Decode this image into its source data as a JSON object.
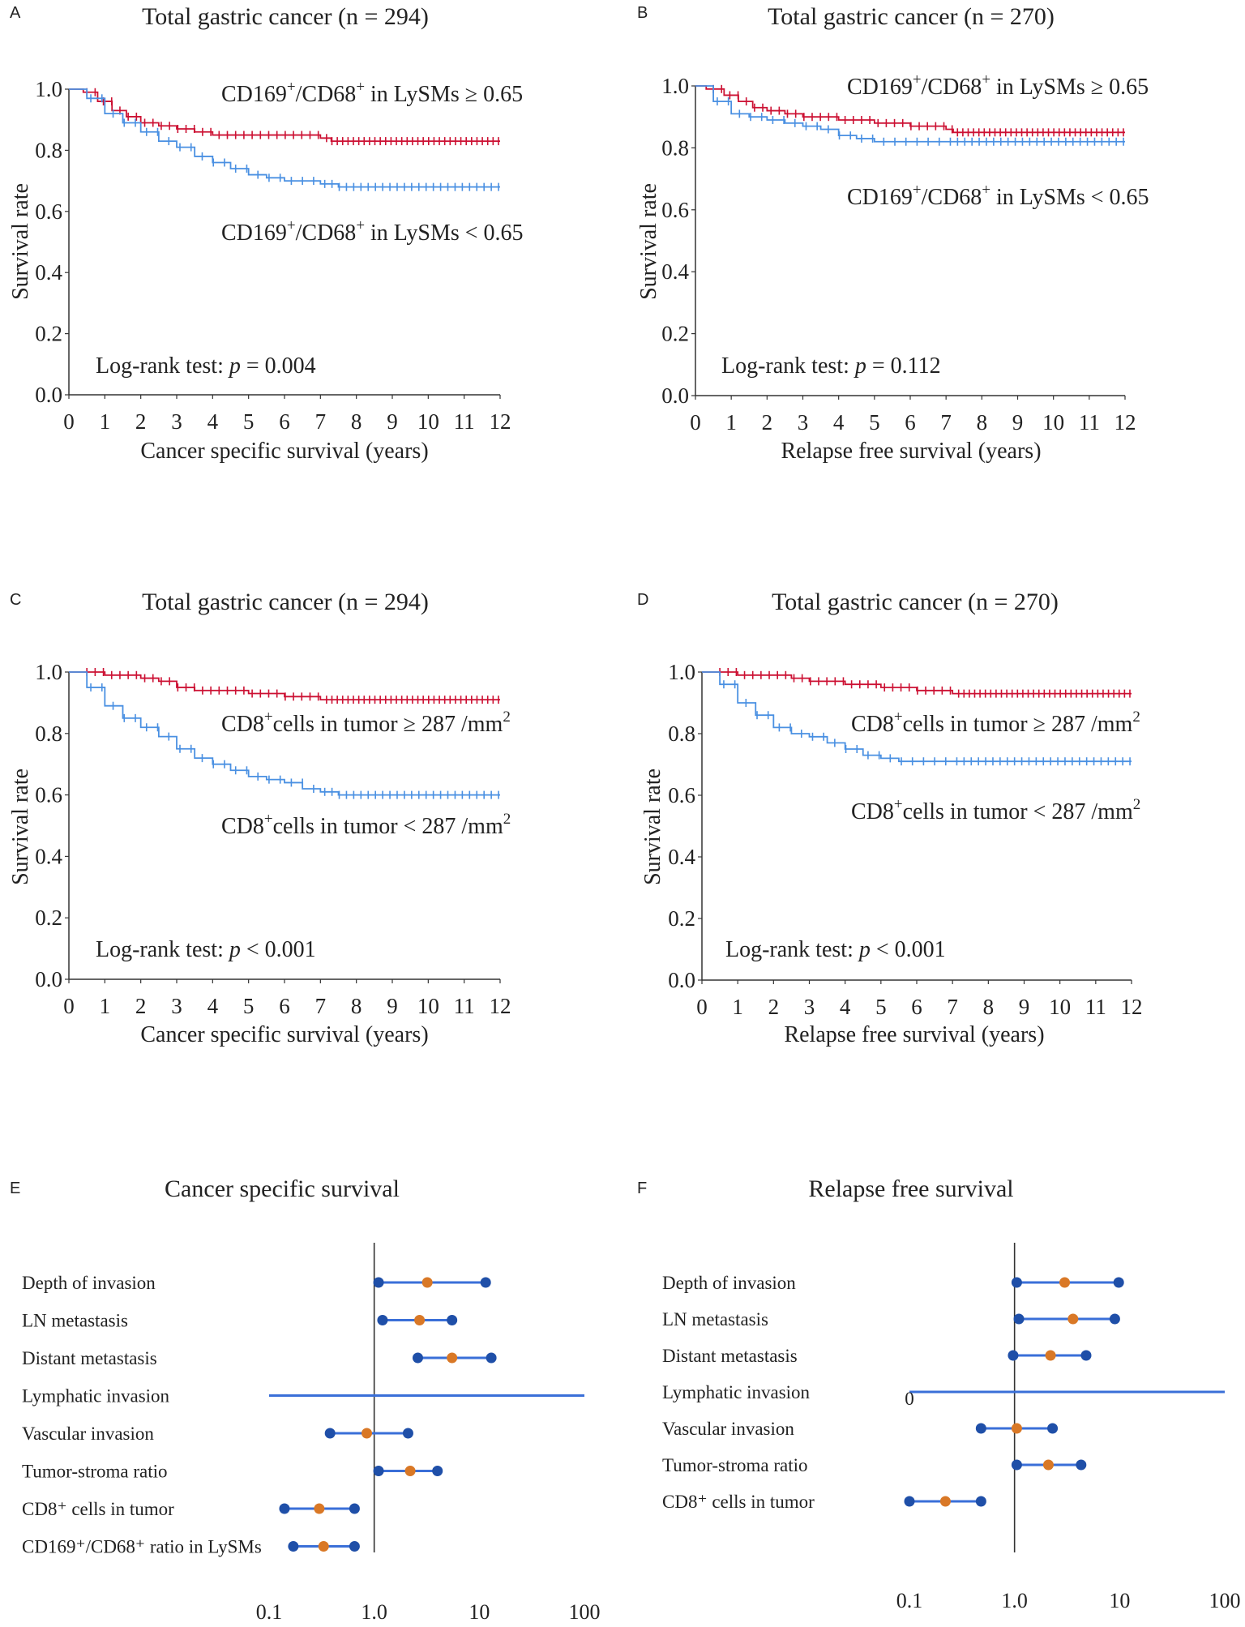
{
  "chart_data": [
    {
      "panel": "A",
      "type": "line",
      "title": "Total gastric cancer (n = 294)",
      "xlabel": "Cancer specific survival (years)",
      "ylabel": "Survival rate",
      "xlim": [
        0,
        12
      ],
      "ylim": [
        0,
        1
      ],
      "xticks": [
        "0",
        "1",
        "2",
        "3",
        "4",
        "5",
        "6",
        "7",
        "8",
        "9",
        "10",
        "11",
        "12"
      ],
      "yticks": [
        "0.0",
        "0.2",
        "0.4",
        "0.6",
        "0.8",
        "1.0"
      ],
      "annotation": "Log-rank test: p = 0.004",
      "series": [
        {
          "name": "CD169+/CD68+ in LySMs ≥ 0.65",
          "color": "#cc1133",
          "label": {
            "base": "CD169",
            "sup1": "+",
            "mid": "/CD68",
            "sup2": "+",
            "rest": " in LySMs ≥ 0.65"
          },
          "x": [
            0,
            0.4,
            0.8,
            1.2,
            1.6,
            2,
            2.5,
            3,
            3.5,
            4,
            5,
            6,
            7,
            7.3,
            12
          ],
          "y": [
            1.0,
            0.99,
            0.96,
            0.93,
            0.91,
            0.89,
            0.88,
            0.87,
            0.86,
            0.85,
            0.85,
            0.85,
            0.84,
            0.83,
            0.83
          ]
        },
        {
          "name": "CD169+/CD68+ in LySMs < 0.65",
          "color": "#4a90e2",
          "label": {
            "base": "CD169",
            "sup1": "+",
            "mid": "/CD68",
            "sup2": "+",
            "rest": " in LySMs < 0.65"
          },
          "x": [
            0,
            0.5,
            1,
            1.5,
            2,
            2.5,
            3,
            3.5,
            4,
            4.5,
            5,
            5.5,
            6,
            6.5,
            7,
            7.5,
            12
          ],
          "y": [
            1.0,
            0.97,
            0.92,
            0.89,
            0.86,
            0.83,
            0.81,
            0.78,
            0.76,
            0.74,
            0.72,
            0.71,
            0.7,
            0.7,
            0.69,
            0.68,
            0.68
          ]
        }
      ]
    },
    {
      "panel": "B",
      "type": "line",
      "title": "Total gastric cancer (n = 270)",
      "xlabel": "Relapse free survival (years)",
      "ylabel": "Survival rate",
      "xlim": [
        0,
        12
      ],
      "ylim": [
        0,
        1
      ],
      "xticks": [
        "0",
        "1",
        "2",
        "3",
        "4",
        "5",
        "6",
        "7",
        "8",
        "9",
        "10",
        "11",
        "12"
      ],
      "yticks": [
        "0.0",
        "0.2",
        "0.4",
        "0.6",
        "0.8",
        "1.0"
      ],
      "annotation": "Log-rank test: p = 0.112",
      "series": [
        {
          "name": "CD169+/CD68+ in LySMs ≥ 0.65",
          "color": "#cc1133",
          "label": {
            "base": "CD169",
            "sup1": "+",
            "mid": "/CD68",
            "sup2": "+",
            "rest": " in LySMs ≥ 0.65"
          },
          "x": [
            0,
            0.3,
            0.8,
            1.2,
            1.6,
            2,
            2.5,
            3,
            3.5,
            4,
            5,
            6,
            7,
            7.2,
            12
          ],
          "y": [
            1.0,
            0.99,
            0.97,
            0.95,
            0.93,
            0.92,
            0.91,
            0.9,
            0.9,
            0.89,
            0.88,
            0.87,
            0.86,
            0.85,
            0.85
          ]
        },
        {
          "name": "CD169+/CD68+ in LySMs < 0.65",
          "color": "#4a90e2",
          "label": {
            "base": "CD169",
            "sup1": "+",
            "mid": "/CD68",
            "sup2": "+",
            "rest": " in LySMs < 0.65"
          },
          "x": [
            0,
            0.5,
            1,
            1.5,
            2,
            2.5,
            3,
            3.5,
            4,
            4.5,
            5,
            12
          ],
          "y": [
            1.0,
            0.95,
            0.91,
            0.9,
            0.89,
            0.88,
            0.87,
            0.86,
            0.84,
            0.83,
            0.82,
            0.82
          ]
        }
      ]
    },
    {
      "panel": "C",
      "type": "line",
      "title": "Total gastric cancer (n = 294)",
      "xlabel": "Cancer specific survival (years)",
      "ylabel": "Survival rate",
      "xlim": [
        0,
        12
      ],
      "ylim": [
        0,
        1
      ],
      "xticks": [
        "0",
        "1",
        "2",
        "3",
        "4",
        "5",
        "6",
        "7",
        "8",
        "9",
        "10",
        "11",
        "12"
      ],
      "yticks": [
        "0.0",
        "0.2",
        "0.4",
        "0.6",
        "0.8",
        "1.0"
      ],
      "annotation": "Log-rank test: p < 0.001",
      "series": [
        {
          "name": "CD8+cells in tumor ≥ 287 /mm2",
          "color": "#cc1133",
          "label": {
            "base": "CD8",
            "sup1": "+",
            "mid": "cells in tumor ≥ 287 /mm",
            "sup2": "2",
            "rest": ""
          },
          "x": [
            0,
            1,
            2,
            2.5,
            3,
            3.5,
            4,
            5,
            6,
            7,
            12
          ],
          "y": [
            1.0,
            0.99,
            0.98,
            0.97,
            0.95,
            0.94,
            0.94,
            0.93,
            0.92,
            0.91,
            0.91
          ]
        },
        {
          "name": "CD8+cells in tumor < 287 /mm2",
          "color": "#4a90e2",
          "label": {
            "base": "CD8",
            "sup1": "+",
            "mid": "cells in tumor < 287 /mm",
            "sup2": "2",
            "rest": ""
          },
          "x": [
            0,
            0.5,
            1,
            1.5,
            2,
            2.5,
            3,
            3.5,
            4,
            4.5,
            5,
            5.5,
            6,
            6.5,
            7,
            7.5,
            12
          ],
          "y": [
            1.0,
            0.95,
            0.89,
            0.85,
            0.82,
            0.79,
            0.75,
            0.72,
            0.7,
            0.68,
            0.66,
            0.65,
            0.64,
            0.62,
            0.61,
            0.6,
            0.6
          ]
        }
      ]
    },
    {
      "panel": "D",
      "type": "line",
      "title": "Total gastric cancer (n = 270)",
      "xlabel": "Relapse free survival (years)",
      "ylabel": "Survival rate",
      "xlim": [
        0,
        12
      ],
      "ylim": [
        0,
        1
      ],
      "xticks": [
        "0",
        "1",
        "2",
        "3",
        "4",
        "5",
        "6",
        "7",
        "8",
        "9",
        "10",
        "11",
        "12"
      ],
      "yticks": [
        "0.0",
        "0.2",
        "0.4",
        "0.6",
        "0.8",
        "1.0"
      ],
      "annotation": "Log-rank test: p < 0.001",
      "series": [
        {
          "name": "CD8+cells in tumor ≥ 287 /mm2",
          "color": "#cc1133",
          "label": {
            "base": "CD8",
            "sup1": "+",
            "mid": "cells in tumor ≥ 287 /mm",
            "sup2": "2",
            "rest": ""
          },
          "x": [
            0,
            1,
            2,
            2.5,
            3,
            3.5,
            4,
            5,
            6,
            7,
            12
          ],
          "y": [
            1.0,
            0.99,
            0.99,
            0.98,
            0.97,
            0.97,
            0.96,
            0.95,
            0.94,
            0.93,
            0.93
          ]
        },
        {
          "name": "CD8+cells in tumor < 287 /mm2",
          "color": "#4a90e2",
          "label": {
            "base": "CD8",
            "sup1": "+",
            "mid": "cells in tumor < 287 /mm",
            "sup2": "2",
            "rest": ""
          },
          "x": [
            0,
            0.5,
            1,
            1.5,
            2,
            2.5,
            3,
            3.5,
            4,
            4.5,
            5,
            5.5,
            6,
            12
          ],
          "y": [
            1.0,
            0.96,
            0.9,
            0.86,
            0.82,
            0.8,
            0.79,
            0.77,
            0.75,
            0.73,
            0.72,
            0.71,
            0.71,
            0.71
          ]
        }
      ]
    },
    {
      "panel": "E",
      "type": "scatter",
      "title": "Cancer specific survival",
      "xscale": "log",
      "xlim": [
        0.1,
        100
      ],
      "xticks": [
        {
          "v": 0.1,
          "t": "0.1"
        },
        {
          "v": 1,
          "t": "1.0"
        },
        {
          "v": 10,
          "t": "10"
        },
        {
          "v": 100,
          "t": "100"
        }
      ],
      "refline": 1,
      "rows": [
        {
          "label": "Depth of invasion",
          "lo": 1.1,
          "est": 3.2,
          "hi": 11.5
        },
        {
          "label": "LN metastasis",
          "lo": 1.2,
          "est": 2.7,
          "hi": 5.5
        },
        {
          "label": "Distant metastasis",
          "lo": 2.6,
          "est": 5.5,
          "hi": 13.0
        },
        {
          "label": "Lymphatic invasion",
          "lo": 0.1,
          "est": null,
          "hi": 100,
          "full_span": true
        },
        {
          "label": "Vascular invasion",
          "lo": 0.38,
          "est": 0.85,
          "hi": 2.1
        },
        {
          "label": "Tumor-stroma ratio",
          "lo": 1.1,
          "est": 2.2,
          "hi": 4.0
        },
        {
          "label": "CD8⁺ cells in tumor",
          "lo": 0.14,
          "est": 0.3,
          "hi": 0.65
        },
        {
          "label": "CD169⁺/CD68⁺ ratio in LySMs",
          "lo": 0.17,
          "est": 0.33,
          "hi": 0.65
        }
      ]
    },
    {
      "panel": "F",
      "type": "scatter",
      "title": "Relapse free survival",
      "xscale": "log",
      "xlim": [
        0.1,
        100
      ],
      "xticks": [
        {
          "v": 0.1,
          "t": "0.1"
        },
        {
          "v": 1,
          "t": "1.0"
        },
        {
          "v": 10,
          "t": "10"
        },
        {
          "v": 100,
          "t": "100"
        }
      ],
      "refline": 1,
      "rows": [
        {
          "label": "Depth of invasion",
          "lo": 1.05,
          "est": 3.0,
          "hi": 9.8
        },
        {
          "label": "LN metastasis",
          "lo": 1.1,
          "est": 3.6,
          "hi": 9.0
        },
        {
          "label": "Distant metastasis",
          "lo": 0.97,
          "est": 2.2,
          "hi": 4.8
        },
        {
          "label": "Lymphatic invasion",
          "lo": 0.1,
          "est": null,
          "hi": 100,
          "full_span": true
        },
        {
          "label": "Vascular invasion",
          "lo": 0.48,
          "est": 1.05,
          "hi": 2.3
        },
        {
          "label": "Tumor-stroma ratio",
          "lo": 1.05,
          "est": 2.1,
          "hi": 4.3
        },
        {
          "label": "CD8⁺ cells in tumor",
          "lo": 0.1,
          "est": 0.22,
          "hi": 0.48
        }
      ]
    }
  ],
  "panel_letters": [
    "A",
    "B",
    "C",
    "D",
    "E",
    "F"
  ],
  "colors": {
    "high": "#cc1133",
    "low": "#4a90e2",
    "ci_line": "#3a6fd8",
    "ci_end": "#1f4fa8",
    "estimate": "#d97826",
    "axis": "#333333"
  },
  "forest_dummy_tick": "0"
}
